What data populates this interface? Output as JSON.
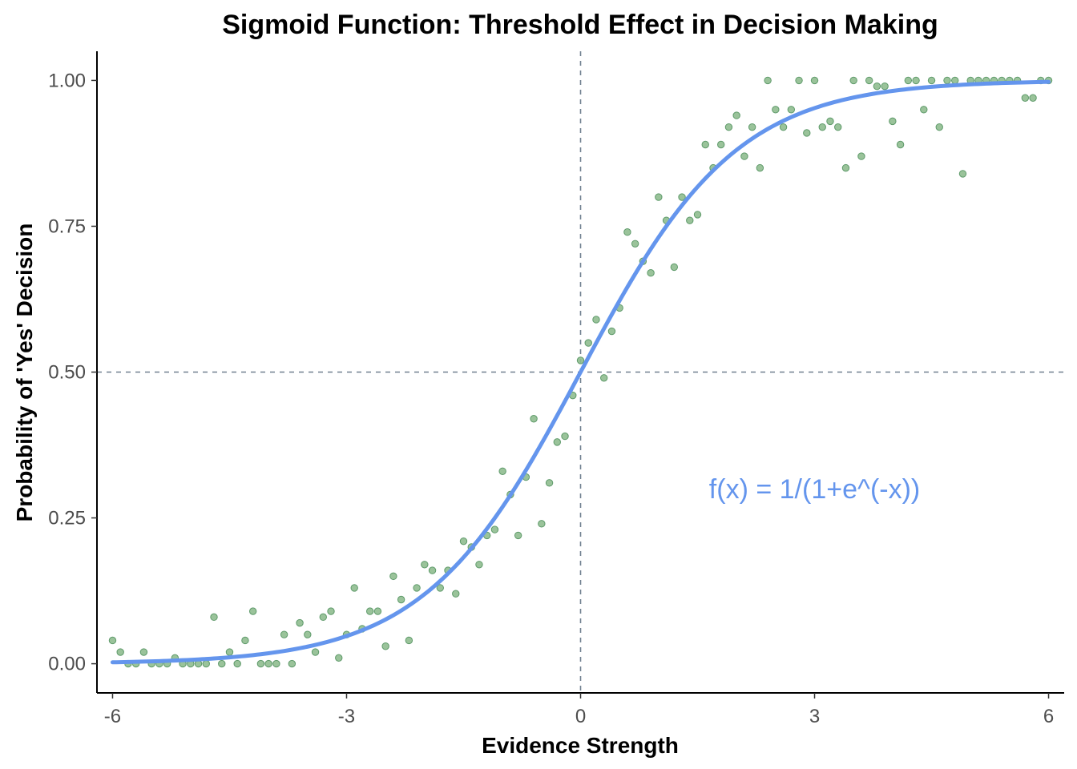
{
  "chart_data": {
    "type": "scatter",
    "title": "Sigmoid Function: Threshold Effect in Decision Making",
    "xlabel": "Evidence Strength",
    "ylabel": "Probability of 'Yes' Decision",
    "xlim": [
      -6.2,
      6.2
    ],
    "ylim": [
      -0.05,
      1.05
    ],
    "x_ticks": [
      -6,
      -3,
      0,
      3,
      6
    ],
    "x_tick_labels": [
      "-6",
      "-3",
      "0",
      "3",
      "6"
    ],
    "y_ticks": [
      0,
      0.25,
      0.5,
      0.75,
      1
    ],
    "y_tick_labels": [
      "0.00",
      "0.25",
      "0.50",
      "0.75",
      "1.00"
    ],
    "grid": false,
    "reference_lines": {
      "vline_x": 0,
      "hline_y": 0.5,
      "style": "dashed"
    },
    "annotation": {
      "text": "f(x) = 1/(1+e^(-x))",
      "x": 3,
      "y": 0.3
    },
    "colors": {
      "points": "#8fbc8f",
      "point_stroke": "#5e9a6a",
      "curve": "#6495ed",
      "reference": "#708090"
    },
    "curve": {
      "function": "1/(1+exp(-x))",
      "x_range": [
        -6,
        6
      ]
    },
    "points": [
      {
        "x": -6.0,
        "y": 0.04
      },
      {
        "x": -5.9,
        "y": 0.02
      },
      {
        "x": -5.8,
        "y": 0.0
      },
      {
        "x": -5.7,
        "y": 0.0
      },
      {
        "x": -5.6,
        "y": 0.02
      },
      {
        "x": -5.5,
        "y": 0.0
      },
      {
        "x": -5.4,
        "y": 0.0
      },
      {
        "x": -5.3,
        "y": 0.0
      },
      {
        "x": -5.2,
        "y": 0.01
      },
      {
        "x": -5.1,
        "y": 0.0
      },
      {
        "x": -5.0,
        "y": 0.0
      },
      {
        "x": -4.9,
        "y": 0.0
      },
      {
        "x": -4.8,
        "y": 0.0
      },
      {
        "x": -4.7,
        "y": 0.08
      },
      {
        "x": -4.6,
        "y": 0.0
      },
      {
        "x": -4.5,
        "y": 0.02
      },
      {
        "x": -4.4,
        "y": 0.0
      },
      {
        "x": -4.3,
        "y": 0.04
      },
      {
        "x": -4.2,
        "y": 0.09
      },
      {
        "x": -4.1,
        "y": 0.0
      },
      {
        "x": -4.0,
        "y": 0.0
      },
      {
        "x": -3.9,
        "y": 0.0
      },
      {
        "x": -3.8,
        "y": 0.05
      },
      {
        "x": -3.7,
        "y": 0.0
      },
      {
        "x": -3.6,
        "y": 0.07
      },
      {
        "x": -3.5,
        "y": 0.05
      },
      {
        "x": -3.4,
        "y": 0.02
      },
      {
        "x": -3.3,
        "y": 0.08
      },
      {
        "x": -3.2,
        "y": 0.09
      },
      {
        "x": -3.1,
        "y": 0.01
      },
      {
        "x": -3.0,
        "y": 0.05
      },
      {
        "x": -2.9,
        "y": 0.13
      },
      {
        "x": -2.8,
        "y": 0.06
      },
      {
        "x": -2.7,
        "y": 0.09
      },
      {
        "x": -2.6,
        "y": 0.09
      },
      {
        "x": -2.5,
        "y": 0.03
      },
      {
        "x": -2.4,
        "y": 0.15
      },
      {
        "x": -2.3,
        "y": 0.11
      },
      {
        "x": -2.2,
        "y": 0.04
      },
      {
        "x": -2.1,
        "y": 0.13
      },
      {
        "x": -2.0,
        "y": 0.17
      },
      {
        "x": -1.9,
        "y": 0.16
      },
      {
        "x": -1.8,
        "y": 0.13
      },
      {
        "x": -1.7,
        "y": 0.16
      },
      {
        "x": -1.6,
        "y": 0.12
      },
      {
        "x": -1.5,
        "y": 0.21
      },
      {
        "x": -1.4,
        "y": 0.2
      },
      {
        "x": -1.3,
        "y": 0.17
      },
      {
        "x": -1.2,
        "y": 0.22
      },
      {
        "x": -1.1,
        "y": 0.23
      },
      {
        "x": -1.0,
        "y": 0.33
      },
      {
        "x": -0.9,
        "y": 0.29
      },
      {
        "x": -0.8,
        "y": 0.22
      },
      {
        "x": -0.7,
        "y": 0.32
      },
      {
        "x": -0.6,
        "y": 0.42
      },
      {
        "x": -0.5,
        "y": 0.24
      },
      {
        "x": -0.4,
        "y": 0.31
      },
      {
        "x": -0.3,
        "y": 0.38
      },
      {
        "x": -0.2,
        "y": 0.39
      },
      {
        "x": -0.1,
        "y": 0.46
      },
      {
        "x": 0.0,
        "y": 0.52
      },
      {
        "x": 0.1,
        "y": 0.55
      },
      {
        "x": 0.2,
        "y": 0.59
      },
      {
        "x": 0.3,
        "y": 0.49
      },
      {
        "x": 0.4,
        "y": 0.57
      },
      {
        "x": 0.5,
        "y": 0.61
      },
      {
        "x": 0.6,
        "y": 0.74
      },
      {
        "x": 0.7,
        "y": 0.72
      },
      {
        "x": 0.8,
        "y": 0.69
      },
      {
        "x": 0.9,
        "y": 0.67
      },
      {
        "x": 1.0,
        "y": 0.8
      },
      {
        "x": 1.1,
        "y": 0.76
      },
      {
        "x": 1.2,
        "y": 0.68
      },
      {
        "x": 1.3,
        "y": 0.8
      },
      {
        "x": 1.4,
        "y": 0.76
      },
      {
        "x": 1.5,
        "y": 0.77
      },
      {
        "x": 1.6,
        "y": 0.89
      },
      {
        "x": 1.7,
        "y": 0.85
      },
      {
        "x": 1.8,
        "y": 0.89
      },
      {
        "x": 1.9,
        "y": 0.92
      },
      {
        "x": 2.0,
        "y": 0.94
      },
      {
        "x": 2.1,
        "y": 0.87
      },
      {
        "x": 2.2,
        "y": 0.92
      },
      {
        "x": 2.3,
        "y": 0.85
      },
      {
        "x": 2.4,
        "y": 1.0
      },
      {
        "x": 2.5,
        "y": 0.95
      },
      {
        "x": 2.6,
        "y": 0.92
      },
      {
        "x": 2.7,
        "y": 0.95
      },
      {
        "x": 2.8,
        "y": 1.0
      },
      {
        "x": 2.9,
        "y": 0.91
      },
      {
        "x": 3.0,
        "y": 1.0
      },
      {
        "x": 3.1,
        "y": 0.92
      },
      {
        "x": 3.2,
        "y": 0.93
      },
      {
        "x": 3.3,
        "y": 0.92
      },
      {
        "x": 3.4,
        "y": 0.85
      },
      {
        "x": 3.5,
        "y": 1.0
      },
      {
        "x": 3.6,
        "y": 0.87
      },
      {
        "x": 3.7,
        "y": 1.0
      },
      {
        "x": 3.8,
        "y": 0.99
      },
      {
        "x": 3.9,
        "y": 0.99
      },
      {
        "x": 4.0,
        "y": 0.93
      },
      {
        "x": 4.1,
        "y": 0.89
      },
      {
        "x": 4.2,
        "y": 1.0
      },
      {
        "x": 4.3,
        "y": 1.0
      },
      {
        "x": 4.4,
        "y": 0.95
      },
      {
        "x": 4.5,
        "y": 1.0
      },
      {
        "x": 4.6,
        "y": 0.92
      },
      {
        "x": 4.7,
        "y": 1.0
      },
      {
        "x": 4.8,
        "y": 1.0
      },
      {
        "x": 4.9,
        "y": 0.84
      },
      {
        "x": 5.0,
        "y": 1.0
      },
      {
        "x": 5.1,
        "y": 1.0
      },
      {
        "x": 5.2,
        "y": 1.0
      },
      {
        "x": 5.3,
        "y": 1.0
      },
      {
        "x": 5.4,
        "y": 1.0
      },
      {
        "x": 5.5,
        "y": 1.0
      },
      {
        "x": 5.6,
        "y": 1.0
      },
      {
        "x": 5.7,
        "y": 0.97
      },
      {
        "x": 5.8,
        "y": 0.97
      },
      {
        "x": 5.9,
        "y": 1.0
      },
      {
        "x": 6.0,
        "y": 1.0
      }
    ]
  }
}
